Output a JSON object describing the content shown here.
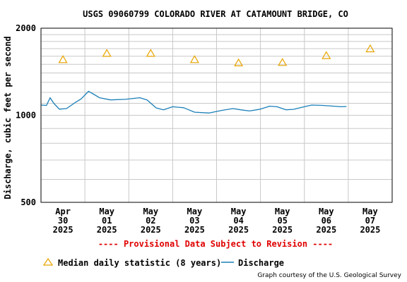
{
  "chart_data": {
    "type": "line",
    "title": "USGS 09060799 COLORADO RIVER AT CATAMOUNT BRIDGE, CO",
    "ylabel": "Discharge, cubic feet per second",
    "xlabel": "",
    "y_scale": "log",
    "ylim": [
      500,
      2000
    ],
    "y_ticks": [
      {
        "value": 500,
        "label": "500"
      },
      {
        "value": 1000,
        "label": "1000"
      },
      {
        "value": 2000,
        "label": "2000"
      }
    ],
    "x_ticks": [
      {
        "day": "2025-04-30",
        "label": [
          "Apr",
          "30",
          "2025"
        ]
      },
      {
        "day": "2025-05-01",
        "label": [
          "May",
          "01",
          "2025"
        ]
      },
      {
        "day": "2025-05-02",
        "label": [
          "May",
          "02",
          "2025"
        ]
      },
      {
        "day": "2025-05-03",
        "label": [
          "May",
          "03",
          "2025"
        ]
      },
      {
        "day": "2025-05-04",
        "label": [
          "May",
          "04",
          "2025"
        ]
      },
      {
        "day": "2025-05-05",
        "label": [
          "May",
          "05",
          "2025"
        ]
      },
      {
        "day": "2025-05-06",
        "label": [
          "May",
          "06",
          "2025"
        ]
      },
      {
        "day": "2025-05-07",
        "label": [
          "May",
          "07",
          "2025"
        ]
      }
    ],
    "grid": true,
    "series": [
      {
        "name": "Median daily statistic (8 years)",
        "kind": "marker",
        "color": "#e8a400",
        "points": [
          {
            "x": "2025-04-30 12:00",
            "y": 1560
          },
          {
            "x": "2025-05-01 12:00",
            "y": 1640
          },
          {
            "x": "2025-05-02 12:00",
            "y": 1640
          },
          {
            "x": "2025-05-03 12:00",
            "y": 1560
          },
          {
            "x": "2025-05-04 12:00",
            "y": 1520
          },
          {
            "x": "2025-05-05 12:00",
            "y": 1525
          },
          {
            "x": "2025-05-06 12:00",
            "y": 1610
          },
          {
            "x": "2025-05-07 12:00",
            "y": 1700
          }
        ]
      },
      {
        "name": "Discharge",
        "kind": "line",
        "color": "#1a7fb8",
        "points": [
          {
            "x": "2025-04-30 00:00",
            "y": 1085
          },
          {
            "x": "2025-04-30 03:00",
            "y": 1082
          },
          {
            "x": "2025-04-30 05:00",
            "y": 1150
          },
          {
            "x": "2025-04-30 07:00",
            "y": 1100
          },
          {
            "x": "2025-04-30 10:00",
            "y": 1050
          },
          {
            "x": "2025-04-30 14:00",
            "y": 1055
          },
          {
            "x": "2025-04-30 19:00",
            "y": 1110
          },
          {
            "x": "2025-04-30 22:00",
            "y": 1140
          },
          {
            "x": "2025-05-01 02:00",
            "y": 1210
          },
          {
            "x": "2025-05-01 05:00",
            "y": 1180
          },
          {
            "x": "2025-05-01 08:00",
            "y": 1150
          },
          {
            "x": "2025-05-01 14:00",
            "y": 1130
          },
          {
            "x": "2025-05-01 22:00",
            "y": 1135
          },
          {
            "x": "2025-05-02 06:00",
            "y": 1150
          },
          {
            "x": "2025-05-02 10:00",
            "y": 1130
          },
          {
            "x": "2025-05-02 15:00",
            "y": 1060
          },
          {
            "x": "2025-05-02 19:00",
            "y": 1045
          },
          {
            "x": "2025-05-03 00:00",
            "y": 1070
          },
          {
            "x": "2025-05-03 06:00",
            "y": 1062
          },
          {
            "x": "2025-05-03 12:00",
            "y": 1025
          },
          {
            "x": "2025-05-03 20:00",
            "y": 1018
          },
          {
            "x": "2025-05-04 03:00",
            "y": 1040
          },
          {
            "x": "2025-05-04 09:00",
            "y": 1055
          },
          {
            "x": "2025-05-04 13:00",
            "y": 1045
          },
          {
            "x": "2025-05-04 18:00",
            "y": 1035
          },
          {
            "x": "2025-05-05 00:00",
            "y": 1050
          },
          {
            "x": "2025-05-05 05:00",
            "y": 1075
          },
          {
            "x": "2025-05-05 09:00",
            "y": 1070
          },
          {
            "x": "2025-05-05 14:00",
            "y": 1045
          },
          {
            "x": "2025-05-05 18:00",
            "y": 1048
          },
          {
            "x": "2025-05-06 00:00",
            "y": 1070
          },
          {
            "x": "2025-05-06 04:00",
            "y": 1085
          },
          {
            "x": "2025-05-06 10:00",
            "y": 1082
          },
          {
            "x": "2025-05-06 16:00",
            "y": 1075
          },
          {
            "x": "2025-05-06 20:00",
            "y": 1070
          },
          {
            "x": "2025-05-06 23:00",
            "y": 1072
          }
        ]
      }
    ],
    "legend_position": "bottom-left"
  },
  "labels": {
    "title": "USGS 09060799 COLORADO RIVER AT CATAMOUNT BRIDGE, CO",
    "ylabel": "Discharge, cubic feet per second",
    "provisional": "---- Provisional Data Subject to Revision ----",
    "legend_median": "Median daily statistic (8 years)",
    "legend_discharge": "Discharge",
    "credit": "Graph courtesy of the U.S. Geological Survey"
  },
  "colors": {
    "median": "#e8a400",
    "discharge": "#1a7fb8",
    "provisional": "#e00000",
    "grid": "#c8c8c8"
  }
}
